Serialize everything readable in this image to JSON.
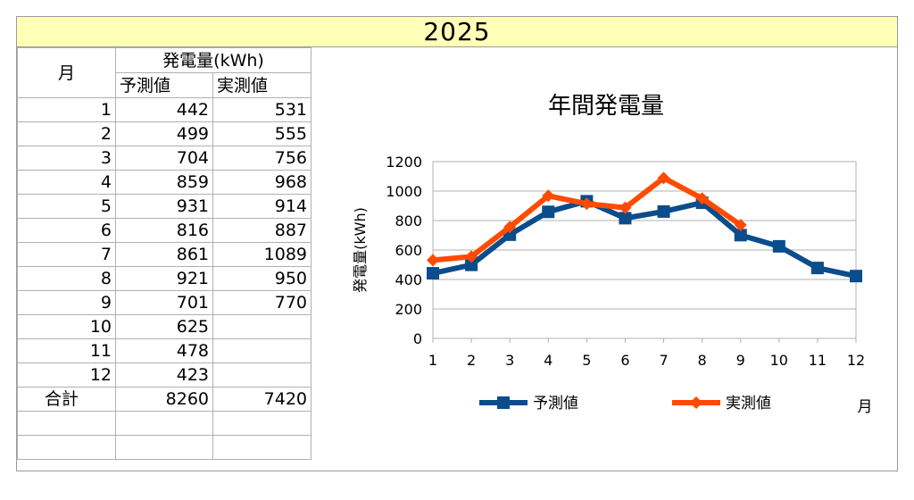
{
  "year_title": "2025",
  "table": {
    "month_header": "月",
    "group_header": "発電量(kWh)",
    "col_pred": "予測値",
    "col_actual": "実測値",
    "rows": [
      {
        "month": "1",
        "pred": "442",
        "actual": "531"
      },
      {
        "month": "2",
        "pred": "499",
        "actual": "555"
      },
      {
        "month": "3",
        "pred": "704",
        "actual": "756"
      },
      {
        "month": "4",
        "pred": "859",
        "actual": "968"
      },
      {
        "month": "5",
        "pred": "931",
        "actual": "914"
      },
      {
        "month": "6",
        "pred": "816",
        "actual": "887"
      },
      {
        "month": "7",
        "pred": "861",
        "actual": "1089"
      },
      {
        "month": "8",
        "pred": "921",
        "actual": "950"
      },
      {
        "month": "9",
        "pred": "701",
        "actual": "770"
      },
      {
        "month": "10",
        "pred": "625",
        "actual": ""
      },
      {
        "month": "11",
        "pred": "478",
        "actual": ""
      },
      {
        "month": "12",
        "pred": "423",
        "actual": ""
      }
    ],
    "total_label": "合計",
    "total_pred": "8260",
    "total_actual": "7420"
  },
  "chart_data": {
    "type": "line",
    "title": "年間発電量",
    "xlabel": "月",
    "ylabel": "発電量(kWh)",
    "categories": [
      "1",
      "2",
      "3",
      "4",
      "5",
      "6",
      "7",
      "8",
      "9",
      "10",
      "11",
      "12"
    ],
    "ylim": [
      0,
      1200
    ],
    "yticks": [
      0,
      200,
      400,
      600,
      800,
      1000,
      1200
    ],
    "grid": true,
    "legend": "bottom",
    "series": [
      {
        "name": "予測値",
        "color": "#0b4c8c",
        "marker": "square",
        "values": [
          442,
          499,
          704,
          859,
          931,
          816,
          861,
          921,
          701,
          625,
          478,
          423
        ]
      },
      {
        "name": "実測値",
        "color": "#ff4a00",
        "marker": "diamond",
        "values": [
          531,
          555,
          756,
          968,
          914,
          887,
          1089,
          950,
          770,
          null,
          null,
          null
        ]
      }
    ]
  }
}
